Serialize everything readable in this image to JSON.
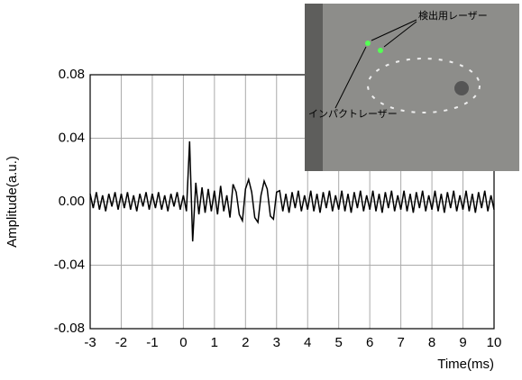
{
  "chart_data": {
    "type": "line",
    "x_label": "Time(ms)",
    "y_label": "Amplitude(a.u.)",
    "annotations": [
      "検出用レーザー",
      "インパクトレーザー"
    ],
    "xlim": [
      -3,
      10
    ],
    "xticks": [
      -3,
      -2,
      -1,
      0,
      1,
      2,
      3,
      4,
      5,
      6,
      7,
      8,
      9,
      10
    ],
    "ylim": [
      -0.08,
      0.08
    ],
    "yticks": [
      {
        "value": -0.08,
        "label": "-0.08"
      },
      {
        "value": -0.04,
        "label": "-0.04"
      },
      {
        "value": 0,
        "label": "0.00"
      },
      {
        "value": 0.04,
        "label": "0.04"
      },
      {
        "value": 0.08,
        "label": "0.08"
      }
    ],
    "grid": true,
    "x": [
      -3,
      -2.9,
      -2.8,
      -2.7,
      -2.6,
      -2.5,
      -2.4,
      -2.3,
      -2.2,
      -2.1,
      -2,
      -1.9,
      -1.8,
      -1.7,
      -1.6,
      -1.5,
      -1.4,
      -1.3,
      -1.2,
      -1.1,
      -1,
      -0.9,
      -0.8,
      -0.7,
      -0.6,
      -0.5,
      -0.4,
      -0.3,
      -0.2,
      -0.1,
      0,
      0.1,
      0.2,
      0.3,
      0.4,
      0.5,
      0.6,
      0.7,
      0.8,
      0.9,
      1,
      1.1,
      1.2,
      1.3,
      1.4,
      1.5,
      1.6,
      1.7,
      1.8,
      1.9,
      2,
      2.1,
      2.2,
      2.3,
      2.4,
      2.5,
      2.6,
      2.7,
      2.8,
      2.9,
      3,
      3.1,
      3.2,
      3.3,
      3.4,
      3.5,
      3.6,
      3.7,
      3.8,
      3.9,
      4,
      4.1,
      4.2,
      4.3,
      4.4,
      4.5,
      4.6,
      4.7,
      4.8,
      4.9,
      5,
      5.1,
      5.2,
      5.3,
      5.4,
      5.5,
      5.6,
      5.7,
      5.8,
      5.9,
      6,
      6.1,
      6.2,
      6.3,
      6.4,
      6.5,
      6.6,
      6.7,
      6.8,
      6.9,
      7,
      7.1,
      7.2,
      7.3,
      7.4,
      7.5,
      7.6,
      7.7,
      7.8,
      7.9,
      8,
      8.1,
      8.2,
      8.3,
      8.4,
      8.5,
      8.6,
      8.7,
      8.8,
      8.9,
      9,
      9.1,
      9.2,
      9.3,
      9.4,
      9.5,
      9.6,
      9.7,
      9.8,
      9.9,
      10
    ],
    "series": [
      {
        "color": "#000000",
        "values": [
          0.005,
          -0.004,
          0.006,
          -0.005,
          0.004,
          -0.006,
          0.005,
          -0.003,
          0.006,
          -0.005,
          0.005,
          -0.004,
          0.006,
          -0.005,
          0.004,
          -0.006,
          0.005,
          -0.003,
          0.006,
          -0.005,
          0.005,
          -0.004,
          0.006,
          -0.005,
          0.004,
          -0.006,
          0.005,
          -0.003,
          0.006,
          -0.005,
          0.004,
          -0.006,
          0.038,
          -0.025,
          0.012,
          -0.008,
          0.009,
          -0.007,
          0.008,
          -0.006,
          0.007,
          -0.008,
          0.01,
          -0.006,
          0.004,
          -0.01,
          0.011,
          0.006,
          -0.008,
          -0.012,
          0.008,
          0.014,
          0.006,
          -0.01,
          -0.013,
          0.004,
          0.013,
          0.008,
          -0.009,
          -0.011,
          0.006,
          0.007,
          -0.006,
          0.005,
          -0.007,
          0.006,
          -0.004,
          0.007,
          -0.006,
          0.004,
          -0.005,
          0.007,
          -0.006,
          0.005,
          -0.007,
          0.006,
          -0.004,
          0.007,
          -0.006,
          0.004,
          -0.005,
          0.007,
          -0.006,
          0.005,
          -0.007,
          0.006,
          -0.004,
          0.007,
          -0.006,
          0.004,
          -0.005,
          0.007,
          -0.006,
          0.005,
          -0.007,
          0.006,
          -0.004,
          0.007,
          -0.006,
          0.004,
          -0.005,
          0.007,
          -0.006,
          0.005,
          -0.007,
          0.006,
          -0.004,
          0.007,
          -0.006,
          0.004,
          -0.005,
          0.007,
          -0.006,
          0.005,
          -0.007,
          0.006,
          -0.004,
          0.007,
          -0.006,
          0.004,
          -0.005,
          0.007,
          -0.006,
          0.005,
          -0.007,
          0.006,
          -0.004,
          0.007,
          -0.006,
          0.004,
          -0.005
        ]
      }
    ]
  }
}
